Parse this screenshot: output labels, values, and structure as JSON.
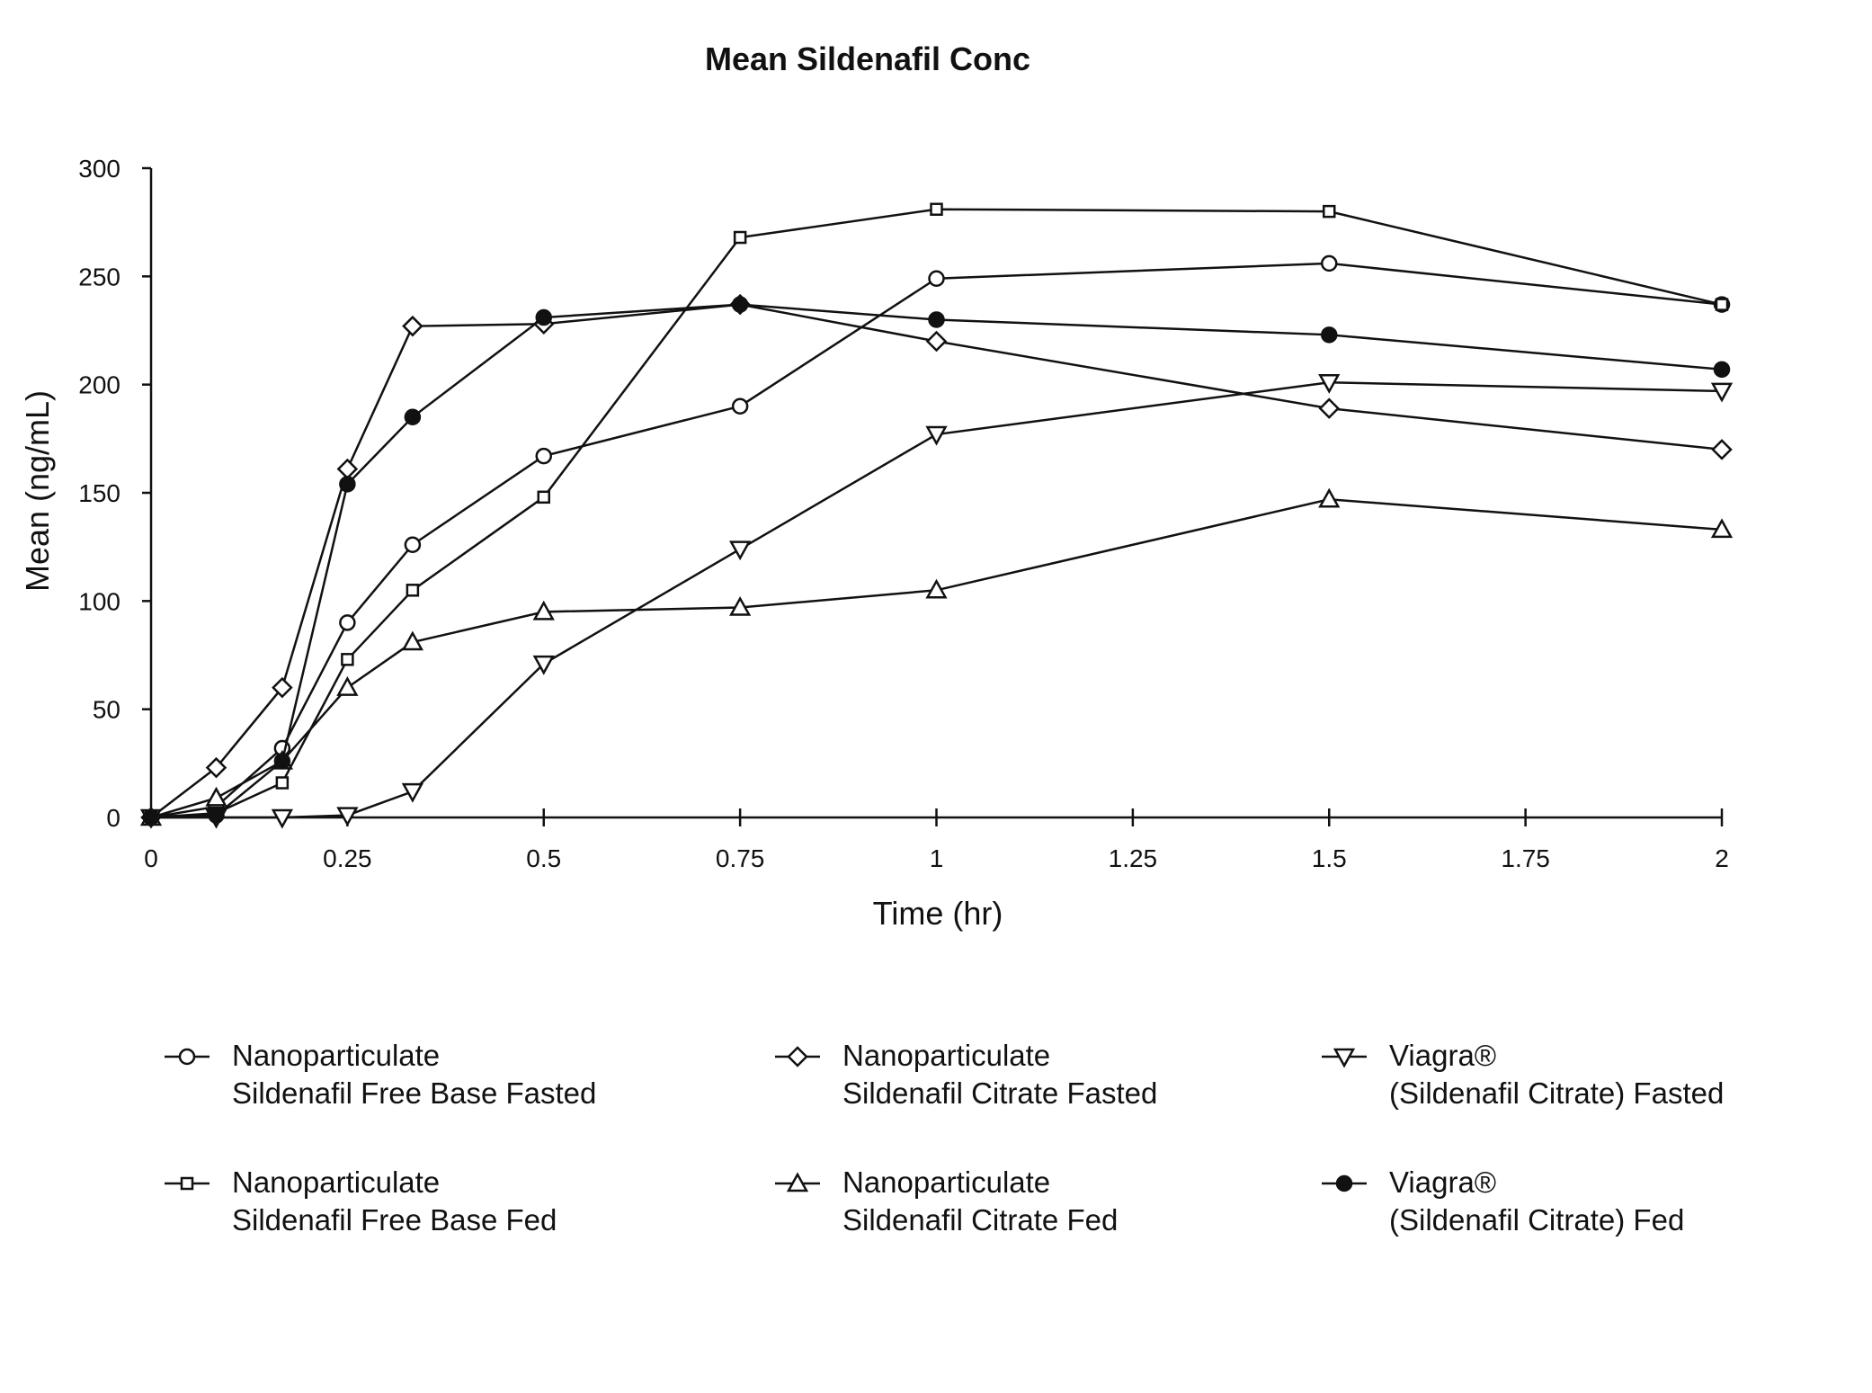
{
  "chart_data": {
    "type": "line",
    "title": "Mean Sildenafil Conc",
    "xlabel": "Time (hr)",
    "ylabel": "Mean (ng/mL)",
    "xlim": [
      0,
      2
    ],
    "ylim": [
      0,
      300
    ],
    "x_ticks": [
      "0",
      "0.25",
      "0.5",
      "0.75",
      "1",
      "1.25",
      "1.5",
      "1.75",
      "2"
    ],
    "y_ticks": [
      "0",
      "50",
      "100",
      "150",
      "200",
      "250",
      "300"
    ],
    "x_tick_values": [
      0,
      0.25,
      0.5,
      0.75,
      1,
      1.25,
      1.5,
      1.75,
      2
    ],
    "y_tick_values": [
      0,
      50,
      100,
      150,
      200,
      250,
      300
    ],
    "grid": false,
    "legend_position": "bottom",
    "series": [
      {
        "name": "Nanoparticulate Sildenafil Free Base Fasted",
        "legend_lines": [
          "Nanoparticulate",
          "Sildenafil Free Base Fasted"
        ],
        "marker": "circle",
        "x": [
          0,
          0.083,
          0.167,
          0.25,
          0.333,
          0.5,
          0.75,
          1,
          1.5,
          2
        ],
        "values": [
          0,
          5,
          32,
          90,
          126,
          167,
          190,
          249,
          256,
          237
        ]
      },
      {
        "name": "Nanoparticulate Sildenafil Citrate Fasted",
        "legend_lines": [
          "Nanoparticulate",
          "Sildenafil Citrate Fasted"
        ],
        "marker": "diamond",
        "x": [
          0,
          0.083,
          0.167,
          0.25,
          0.333,
          0.5,
          0.75,
          1,
          1.5,
          2
        ],
        "values": [
          0,
          23,
          60,
          161,
          227,
          228,
          237,
          220,
          189,
          170
        ]
      },
      {
        "name": "Viagra® (Sildenafil Citrate) Fasted",
        "legend_lines": [
          "Viagra®",
          "(Sildenafil Citrate)  Fasted"
        ],
        "marker": "triangle-down",
        "x": [
          0,
          0.083,
          0.167,
          0.25,
          0.333,
          0.5,
          0.75,
          1,
          1.5,
          2
        ],
        "values": [
          0,
          0,
          0,
          1,
          12,
          71,
          124,
          177,
          201,
          197
        ]
      },
      {
        "name": "Nanoparticulate Sildenafil Free Base Fed",
        "legend_lines": [
          "Nanoparticulate",
          "Sildenafil Free Base Fed"
        ],
        "marker": "square",
        "x": [
          0,
          0.083,
          0.167,
          0.25,
          0.333,
          0.5,
          0.75,
          1,
          1.5,
          2
        ],
        "values": [
          0,
          2,
          16,
          73,
          105,
          148,
          268,
          281,
          280,
          237
        ]
      },
      {
        "name": "Nanoparticulate Sildenafil Citrate Fed",
        "legend_lines": [
          "Nanoparticulate",
          "Sildenafil Citrate Fed"
        ],
        "marker": "triangle-up",
        "x": [
          0,
          0.083,
          0.167,
          0.25,
          0.333,
          0.5,
          0.75,
          1,
          1.5,
          2
        ],
        "values": [
          0,
          9,
          26,
          60,
          81,
          95,
          97,
          105,
          147,
          133
        ]
      },
      {
        "name": "Viagra® (Sildenafil Citrate) Fed",
        "legend_lines": [
          "Viagra®",
          "(Sildenafil Citrate)  Fed"
        ],
        "marker": "filled-circle",
        "x": [
          0,
          0.083,
          0.167,
          0.25,
          0.333,
          0.5,
          0.75,
          1,
          1.5,
          2
        ],
        "values": [
          0,
          1,
          26,
          154,
          185,
          231,
          237,
          230,
          223,
          207
        ]
      }
    ]
  }
}
